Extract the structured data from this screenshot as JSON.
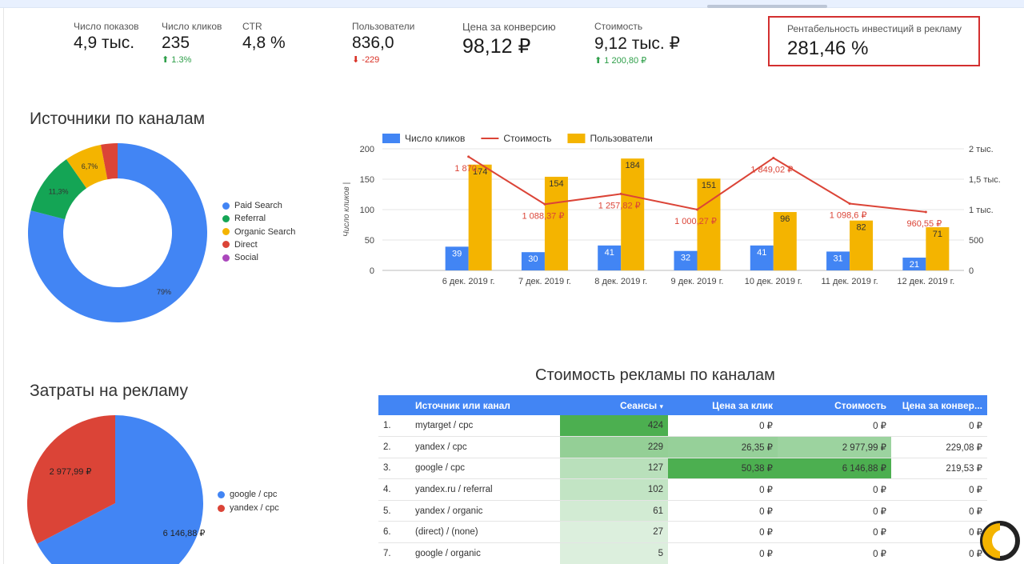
{
  "kpis": [
    {
      "label": "Число показов",
      "value": "4,9 тыс.",
      "delta": ""
    },
    {
      "label": "Число кликов",
      "value": "235",
      "delta": "1.3%",
      "delta_dir": "up"
    },
    {
      "label": "CTR",
      "value": "4,8 %",
      "delta": ""
    },
    {
      "label": "Пользователи",
      "value": "836,0",
      "delta": "-229",
      "delta_dir": "down"
    },
    {
      "label": "Цена за конверсию",
      "value": "98,12 ₽",
      "delta": ""
    },
    {
      "label": "Стоимость",
      "value": "9,12 тыс. ₽",
      "delta": "1 200,80 ₽",
      "delta_dir": "up"
    }
  ],
  "roi": {
    "label": "Рентабельность инвестиций в рекламу",
    "value": "281,46 %"
  },
  "sources": {
    "title": "Источники по каналам",
    "chart_data": {
      "type": "pie",
      "donut": true,
      "slices": [
        {
          "name": "Paid Search",
          "value": 79,
          "label": "79%",
          "color": "#4285f4"
        },
        {
          "name": "Referral",
          "value": 11.3,
          "label": "11,3%",
          "color": "#14a555"
        },
        {
          "name": "Organic Search",
          "value": 6.7,
          "label": "6,7%",
          "color": "#f4b400"
        },
        {
          "name": "Direct",
          "value": 3.0,
          "label": "",
          "color": "#db4437"
        },
        {
          "name": "Social",
          "value": 0,
          "label": "",
          "color": "#ab47bc"
        }
      ]
    }
  },
  "combo": {
    "chart_data": {
      "type": "bar",
      "categories": [
        "6 дек. 2019 г.",
        "7 дек. 2019 г.",
        "8 дек. 2019 г.",
        "9 дек. 2019 г.",
        "10 дек. 2019 г.",
        "11 дек. 2019 г.",
        "12 дек. 2019 г."
      ],
      "series": [
        {
          "name": "Число кликов",
          "kind": "bar",
          "color": "#4285f4",
          "values": [
            39,
            30,
            41,
            32,
            41,
            31,
            21
          ],
          "labels": [
            "39",
            "30",
            "41",
            "32",
            "41",
            "31",
            "21"
          ]
        },
        {
          "name": "Стоимость",
          "kind": "line",
          "axis": "right",
          "color": "#db4437",
          "values": [
            1870,
            1088.37,
            1257.82,
            1000.27,
            1849.02,
            1098.6,
            960.55
          ],
          "labels": [
            "1 870,",
            "1 088,37 ₽",
            "1 257,82 ₽",
            "1 000,27 ₽",
            "1 849,02 ₽",
            "1 098,6 ₽",
            "960,55 ₽"
          ]
        },
        {
          "name": "Пользователи",
          "kind": "bar",
          "color": "#f4b400",
          "values": [
            174,
            154,
            184,
            151,
            96,
            82,
            71
          ],
          "labels": [
            "174",
            "154",
            "184",
            "151",
            "96",
            "82",
            "71"
          ]
        }
      ],
      "ylabel": "Число кликов |",
      "ylim": [
        0,
        200
      ],
      "yticks": [
        "0",
        "50",
        "100",
        "150",
        "200"
      ],
      "y2lim": [
        0,
        2000
      ],
      "y2ticks": [
        "0",
        "500",
        "1 тыс.",
        "1,5 тыс.",
        "2 тыс."
      ],
      "grid": true,
      "legend": "top-left"
    }
  },
  "spend": {
    "title": "Затраты на рекламу",
    "chart_data": {
      "type": "pie",
      "slices": [
        {
          "name": "google / cpc",
          "value": 6146.88,
          "label": "6 146,88 ₽",
          "color": "#4285f4"
        },
        {
          "name": "yandex / cpc",
          "value": 2977.99,
          "label": "2 977,99 ₽",
          "color": "#db4437"
        }
      ]
    }
  },
  "table": {
    "title": "Стоимость рекламы по каналам",
    "headers": {
      "source": "Источник или канал",
      "sessions": "Сеансы",
      "sort_marker": "▾",
      "cpc": "Цена за клик",
      "cost": "Стоимость",
      "cpa": "Цена за конвер..."
    },
    "rows": [
      {
        "n": "1.",
        "source": "mytarget / cpc",
        "sessions": "424",
        "cpc": "0 ₽",
        "cost": "0 ₽",
        "cpa": "0 ₽"
      },
      {
        "n": "2.",
        "source": "yandex / cpc",
        "sessions": "229",
        "cpc": "26,35 ₽",
        "cost": "2 977,99 ₽",
        "cpa": "229,08 ₽"
      },
      {
        "n": "3.",
        "source": "google / cpc",
        "sessions": "127",
        "cpc": "50,38 ₽",
        "cost": "6 146,88 ₽",
        "cpa": "219,53 ₽"
      },
      {
        "n": "4.",
        "source": "yandex.ru / referral",
        "sessions": "102",
        "cpc": "0 ₽",
        "cost": "0 ₽",
        "cpa": "0 ₽"
      },
      {
        "n": "5.",
        "source": "yandex / organic",
        "sessions": "61",
        "cpc": "0 ₽",
        "cost": "0 ₽",
        "cpa": "0 ₽"
      },
      {
        "n": "6.",
        "source": "(direct) / (none)",
        "sessions": "27",
        "cpc": "0 ₽",
        "cost": "0 ₽",
        "cpa": "0 ₽"
      },
      {
        "n": "7.",
        "source": "google / organic",
        "sessions": "5",
        "cpc": "0 ₽",
        "cost": "0 ₽",
        "cpa": "0 ₽"
      }
    ]
  }
}
